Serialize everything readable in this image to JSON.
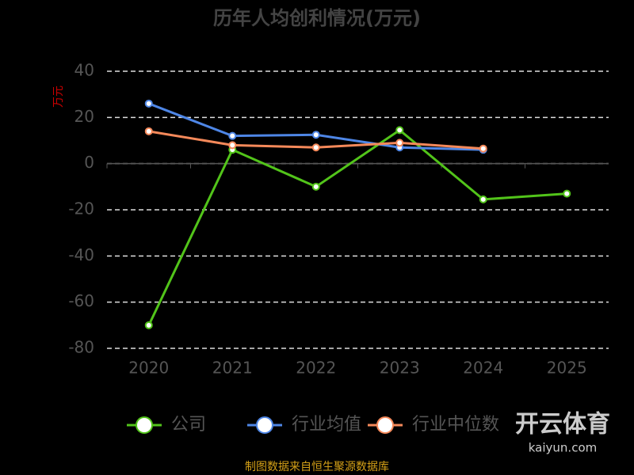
{
  "chart_data": {
    "type": "line",
    "title": "历年人均创利情况(万元)",
    "y_label": "万元",
    "categories": [
      "2020",
      "2021",
      "2022",
      "2023",
      "2024",
      "2025"
    ],
    "series": [
      {
        "name": "公司",
        "color": "#52c41a",
        "values": [
          -70,
          6,
          -10,
          14.5,
          -15.5,
          -13
        ]
      },
      {
        "name": "行业均值",
        "color": "#4e86e6",
        "values": [
          26,
          12,
          12.5,
          7,
          6,
          null
        ]
      },
      {
        "name": "行业中位数",
        "color": "#f5895a",
        "values": [
          14,
          8,
          7,
          9,
          6.5,
          null
        ]
      }
    ],
    "ylim": [
      -80,
      40
    ],
    "yticks": [
      -80,
      -60,
      -40,
      -20,
      0,
      20,
      40
    ],
    "grid": true,
    "source": "制图数据来自恒生聚源数据库",
    "watermark": {
      "brand": "开云体育",
      "site": "kaiyun.com"
    }
  }
}
